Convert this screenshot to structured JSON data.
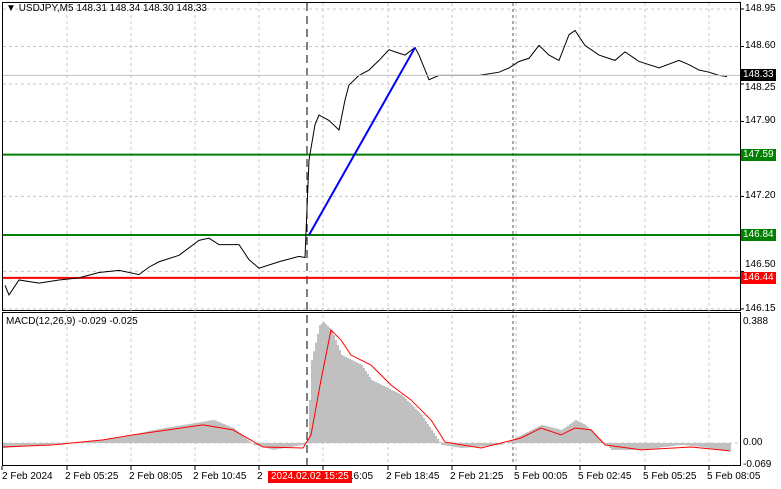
{
  "header": {
    "symbol": "USDJPY,M5",
    "ohlc": "148.31 148.34 148.30 148.33"
  },
  "macd_label": "MACD(12,26,9) -0.029 -0.025",
  "colors": {
    "price_line": "#000000",
    "level_green": "#008000",
    "level_red": "#ff0000",
    "trend_line": "#0000ff",
    "histogram": "#c0c0c0",
    "signal": "#ff0000",
    "grid": "#c8c8c8"
  },
  "chart_data": [
    {
      "type": "line",
      "title": "USDJPY,M5",
      "ylim": [
        146.15,
        148.95
      ],
      "y_ticks": [
        "148.95",
        "148.60",
        "148.25",
        "147.90",
        "147.20",
        "146.50",
        "146.15"
      ],
      "x_unit": "bar index (M5)",
      "series": [
        {
          "name": "USDJPY,M5",
          "points": [
            [
              1,
              146.37
            ],
            [
              3,
              146.28
            ],
            [
              8,
              146.42
            ],
            [
              18,
              146.39
            ],
            [
              28,
              146.42
            ],
            [
              38,
              146.44
            ],
            [
              48,
              146.49
            ],
            [
              58,
              146.51
            ],
            [
              68,
              146.47
            ],
            [
              73,
              146.54
            ],
            [
              78,
              146.59
            ],
            [
              88,
              146.65
            ],
            [
              98,
              146.79
            ],
            [
              103,
              146.81
            ],
            [
              108,
              146.75
            ],
            [
              118,
              146.75
            ],
            [
              123,
              146.61
            ],
            [
              128,
              146.53
            ],
            [
              138,
              146.59
            ],
            [
              148,
              146.64
            ],
            [
              151,
              146.63
            ],
            [
              153,
              147.54
            ],
            [
              156,
              147.87
            ],
            [
              158,
              147.96
            ],
            [
              163,
              147.91
            ],
            [
              168,
              147.82
            ],
            [
              171,
              148.1
            ],
            [
              173,
              148.24
            ],
            [
              178,
              148.33
            ],
            [
              183,
              148.38
            ],
            [
              188,
              148.47
            ],
            [
              193,
              148.57
            ],
            [
              196,
              148.55
            ],
            [
              201,
              148.52
            ],
            [
              206,
              148.59
            ],
            [
              208,
              148.52
            ],
            [
              213,
              148.29
            ],
            [
              218,
              148.33
            ],
            [
              228,
              148.33
            ],
            [
              238,
              148.33
            ],
            [
              248,
              148.36
            ],
            [
              253,
              148.4
            ],
            [
              258,
              148.46
            ],
            [
              263,
              148.49
            ],
            [
              268,
              148.61
            ],
            [
              273,
              148.52
            ],
            [
              278,
              148.47
            ],
            [
              283,
              148.71
            ],
            [
              286,
              148.75
            ],
            [
              291,
              148.61
            ],
            [
              298,
              148.52
            ],
            [
              306,
              148.47
            ],
            [
              311,
              148.55
            ],
            [
              318,
              148.46
            ],
            [
              328,
              148.4
            ],
            [
              338,
              148.47
            ],
            [
              343,
              148.43
            ],
            [
              348,
              148.38
            ],
            [
              353,
              148.36
            ],
            [
              358,
              148.33
            ],
            [
              362,
              148.32
            ]
          ]
        }
      ],
      "levels": [
        {
          "value": 147.59,
          "label": "147.59",
          "color": "#008000"
        },
        {
          "value": 146.84,
          "label": "146.84",
          "color": "#008000"
        },
        {
          "value": 146.44,
          "label": "146.44",
          "color": "#ff0000"
        }
      ],
      "current_price": {
        "value": 148.33,
        "label": "148.33"
      },
      "trend_line": {
        "from": [
          153,
          146.84
        ],
        "to": [
          206,
          148.59
        ]
      }
    },
    {
      "type": "bar",
      "title": "MACD(12,26,9)",
      "ylim": [
        -0.069,
        0.388
      ],
      "y_ticks": [
        "0.388",
        "0.00",
        "-0.069"
      ],
      "histogram": [
        [
          0,
          -0.016
        ],
        [
          20,
          -0.006
        ],
        [
          40,
          0.003
        ],
        [
          60,
          0.019
        ],
        [
          75,
          0.042
        ],
        [
          90,
          0.058
        ],
        [
          105,
          0.074
        ],
        [
          115,
          0.048
        ],
        [
          125,
          -0.006
        ],
        [
          135,
          -0.022
        ],
        [
          150,
          -0.006
        ],
        [
          152,
          0.01
        ],
        [
          154,
          0.266
        ],
        [
          158,
          0.378
        ],
        [
          160,
          0.388
        ],
        [
          164,
          0.362
        ],
        [
          169,
          0.282
        ],
        [
          174,
          0.266
        ],
        [
          179,
          0.25
        ],
        [
          184,
          0.202
        ],
        [
          189,
          0.186
        ],
        [
          194,
          0.17
        ],
        [
          199,
          0.154
        ],
        [
          204,
          0.122
        ],
        [
          209,
          0.09
        ],
        [
          214,
          0.042
        ],
        [
          219,
          -0.006
        ],
        [
          229,
          -0.016
        ],
        [
          249,
          -0.006
        ],
        [
          259,
          0.026
        ],
        [
          269,
          0.058
        ],
        [
          279,
          0.042
        ],
        [
          286,
          0.074
        ],
        [
          291,
          0.058
        ],
        [
          296,
          0.026
        ],
        [
          304,
          -0.022
        ],
        [
          319,
          -0.022
        ],
        [
          339,
          -0.006
        ],
        [
          349,
          -0.013
        ],
        [
          359,
          -0.022
        ],
        [
          363,
          -0.029
        ]
      ],
      "signal": [
        [
          0,
          -0.013
        ],
        [
          25,
          -0.006
        ],
        [
          50,
          0.01
        ],
        [
          65,
          0.026
        ],
        [
          100,
          0.058
        ],
        [
          115,
          0.042
        ],
        [
          130,
          -0.013
        ],
        [
          150,
          -0.016
        ],
        [
          154,
          0.026
        ],
        [
          159,
          0.202
        ],
        [
          164,
          0.362
        ],
        [
          169,
          0.33
        ],
        [
          174,
          0.282
        ],
        [
          184,
          0.25
        ],
        [
          194,
          0.186
        ],
        [
          204,
          0.138
        ],
        [
          214,
          0.074
        ],
        [
          221,
          0.003
        ],
        [
          239,
          -0.016
        ],
        [
          259,
          0.016
        ],
        [
          269,
          0.048
        ],
        [
          279,
          0.026
        ],
        [
          286,
          0.048
        ],
        [
          294,
          0.042
        ],
        [
          301,
          -0.006
        ],
        [
          319,
          -0.022
        ],
        [
          344,
          -0.013
        ],
        [
          363,
          -0.025
        ]
      ]
    }
  ],
  "x_axis": {
    "labels": [
      "2 Feb 2024",
      "2 Feb 05:25",
      "2 Feb 08:05",
      "2 Feb 10:45",
      "2",
      "16:05",
      "2 Feb 18:45",
      "2 Feb 21:25",
      "5 Feb 00:05",
      "5 Feb 02:45",
      "5 Feb 05:25",
      "5 Feb 08:05"
    ],
    "cursor_time": "2024.02.02 15:25"
  }
}
